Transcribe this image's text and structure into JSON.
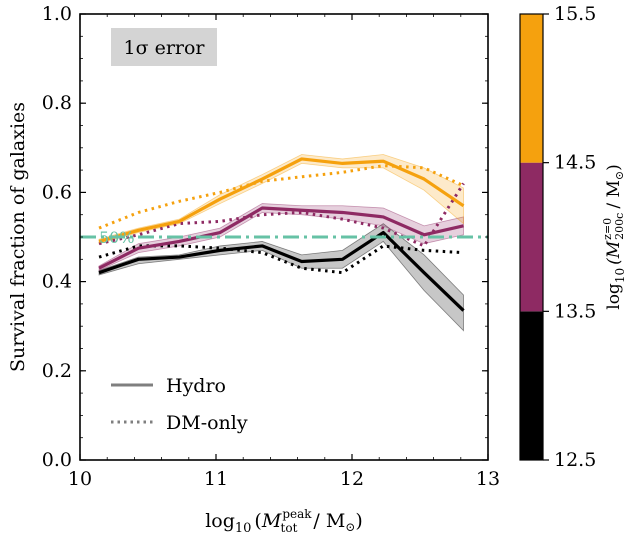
{
  "chart_data": {
    "type": "line",
    "xlabel_main": "log",
    "xlabel_sub": "10",
    "xlabel_var": "M",
    "xlabel_var_sub": "tot",
    "xlabel_var_sup": "peak",
    "xlabel_unit": "/ M",
    "xlabel_sun": "⊙",
    "ylabel": "Survival fraction of galaxies",
    "xlim": [
      10,
      13
    ],
    "ylim": [
      0.0,
      1.0
    ],
    "xticks": [
      "10",
      "11",
      "12",
      "13"
    ],
    "yticks": [
      "0.0",
      "0.2",
      "0.4",
      "0.6",
      "0.8",
      "1.0"
    ],
    "annotation_box": "1σ error",
    "threshold": {
      "y": 0.5,
      "label": "50%",
      "color": "#66c2a5"
    },
    "x": [
      10.14,
      10.43,
      10.73,
      11.03,
      11.34,
      11.63,
      11.93,
      12.23,
      12.53,
      12.82
    ],
    "series": [
      {
        "name": "12.5–13.5 Hydro",
        "style": "solid",
        "color": "#000000",
        "values": [
          0.42,
          0.45,
          0.455,
          0.47,
          0.48,
          0.445,
          0.45,
          0.51,
          0.42,
          0.335
        ],
        "lower": [
          0.415,
          0.44,
          0.45,
          0.46,
          0.47,
          0.43,
          0.43,
          0.49,
          0.38,
          0.29
        ],
        "upper": [
          0.425,
          0.455,
          0.46,
          0.48,
          0.49,
          0.46,
          0.47,
          0.53,
          0.46,
          0.37
        ]
      },
      {
        "name": "12.5–13.5 DM-only",
        "style": "dotted",
        "color": "#000000",
        "values": [
          0.455,
          0.48,
          0.48,
          0.475,
          0.465,
          0.43,
          0.42,
          0.48,
          0.47,
          0.465
        ]
      },
      {
        "name": "13.5–14.5 Hydro",
        "style": "solid",
        "color": "#8e2a63",
        "values": [
          0.43,
          0.475,
          0.49,
          0.51,
          0.565,
          0.56,
          0.555,
          0.545,
          0.505,
          0.525
        ],
        "lower": [
          0.425,
          0.465,
          0.48,
          0.5,
          0.555,
          0.55,
          0.54,
          0.525,
          0.485,
          0.505
        ],
        "upper": [
          0.435,
          0.485,
          0.5,
          0.52,
          0.575,
          0.57,
          0.57,
          0.565,
          0.525,
          0.545
        ]
      },
      {
        "name": "13.5–14.5 DM-only",
        "style": "dotted",
        "color": "#8e2a63",
        "values": [
          0.485,
          0.505,
          0.53,
          0.535,
          0.55,
          0.555,
          0.54,
          0.52,
          0.48,
          0.62
        ]
      },
      {
        "name": "14.5–15.5 Hydro",
        "style": "solid",
        "color": "#f5a10e",
        "values": [
          0.49,
          0.515,
          0.535,
          0.585,
          0.63,
          0.675,
          0.665,
          0.67,
          0.63,
          0.57
        ],
        "lower": [
          0.485,
          0.51,
          0.53,
          0.575,
          0.62,
          0.665,
          0.655,
          0.655,
          0.605,
          0.53
        ],
        "upper": [
          0.495,
          0.52,
          0.54,
          0.595,
          0.64,
          0.685,
          0.675,
          0.685,
          0.655,
          0.61
        ]
      },
      {
        "name": "14.5–15.5 DM-only",
        "style": "dotted",
        "color": "#f5a10e",
        "values": [
          0.52,
          0.555,
          0.58,
          0.6,
          0.625,
          0.635,
          0.645,
          0.66,
          0.655,
          0.615
        ]
      }
    ],
    "legend": {
      "placement": "lower-left",
      "items": [
        {
          "label": "Hydro",
          "style": "solid",
          "color": "#7f7f7f"
        },
        {
          "label": "DM-only",
          "style": "dotted",
          "color": "#7f7f7f"
        }
      ]
    },
    "colorbar": {
      "label_pre": "log",
      "label_sub": "10",
      "label_var": "(M",
      "label_var_sup": "z=0",
      "label_var_sub": "200c",
      "label_unit": "/ M",
      "label_sun": "⊙",
      "label_close": ")",
      "ticks": [
        "12.5",
        "13.5",
        "14.5",
        "15.5"
      ],
      "segments": [
        {
          "from": 12.5,
          "to": 13.5,
          "color": "#000000"
        },
        {
          "from": 13.5,
          "to": 14.5,
          "color": "#8e2a63"
        },
        {
          "from": 14.5,
          "to": 15.5,
          "color": "#f5a10e"
        }
      ]
    }
  }
}
